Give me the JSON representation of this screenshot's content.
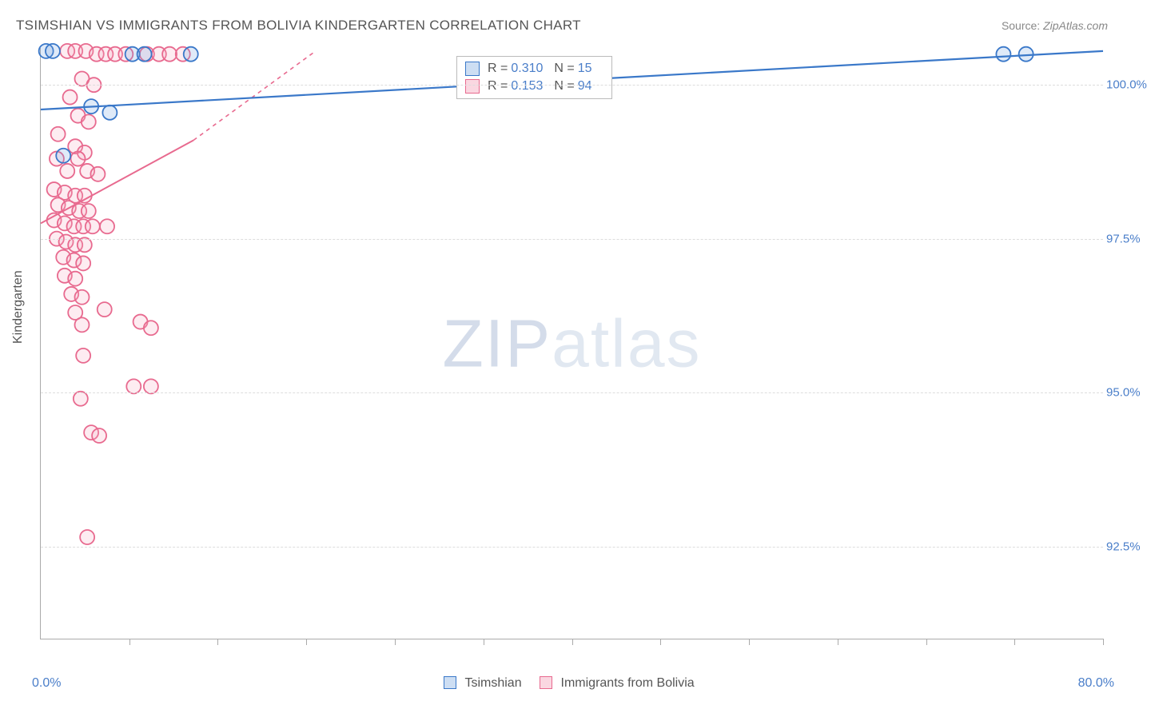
{
  "title": "TSIMSHIAN VS IMMIGRANTS FROM BOLIVIA KINDERGARTEN CORRELATION CHART",
  "source_label": "Source:",
  "source_value": "ZipAtlas.com",
  "ylabel": "Kindergarten",
  "watermark_bold": "ZIP",
  "watermark_light": "atlas",
  "chart": {
    "type": "scatter",
    "plot_bg": "#ffffff",
    "grid_color": "#dddddd",
    "axis_color": "#aaaaaa",
    "tick_label_color": "#4a7ec9",
    "label_color": "#555555",
    "xlim": [
      0,
      80
    ],
    "ylim": [
      91.0,
      100.6
    ],
    "xaxis_left_label": "0.0%",
    "xaxis_right_label": "80.0%",
    "yticks": [
      {
        "v": 100.0,
        "label": "100.0%"
      },
      {
        "v": 97.5,
        "label": "97.5%"
      },
      {
        "v": 95.0,
        "label": "95.0%"
      },
      {
        "v": 92.5,
        "label": "92.5%"
      }
    ],
    "xticks_minor": [
      6.67,
      13.33,
      20,
      26.67,
      33.33,
      40,
      46.67,
      53.33,
      60,
      66.67,
      73.33,
      80
    ],
    "marker_radius": 9,
    "marker_stroke_width": 1.8,
    "marker_fill_opacity": 0.22
  },
  "series": {
    "blue": {
      "name": "Tsimshian",
      "color_stroke": "#3a78c9",
      "color_fill": "#6fa0dd",
      "R": "0.310",
      "N": "15",
      "trend": {
        "x1": 0,
        "y1": 99.6,
        "x2": 80,
        "y2": 100.55,
        "width": 2.2,
        "dash": null
      },
      "points": [
        [
          0.4,
          100.55
        ],
        [
          0.9,
          100.55
        ],
        [
          6.9,
          100.5
        ],
        [
          7.8,
          100.5
        ],
        [
          11.3,
          100.5
        ],
        [
          3.8,
          99.65
        ],
        [
          5.2,
          99.55
        ],
        [
          1.7,
          98.85
        ],
        [
          72.5,
          100.5
        ],
        [
          74.2,
          100.5
        ]
      ]
    },
    "pink": {
      "name": "Immigrants from Bolivia",
      "color_stroke": "#e86a8f",
      "color_fill": "#f4a7bd",
      "R": "0.153",
      "N": "94",
      "trend_solid": {
        "x1": 0,
        "y1": 97.75,
        "x2": 11.5,
        "y2": 99.1,
        "width": 2.0
      },
      "trend_dash": {
        "x1": 11.5,
        "y1": 99.1,
        "x2": 20.7,
        "y2": 100.55,
        "dash": "5,5",
        "width": 1.6
      },
      "points": [
        [
          2.0,
          100.55
        ],
        [
          2.6,
          100.55
        ],
        [
          3.4,
          100.55
        ],
        [
          4.2,
          100.5
        ],
        [
          4.9,
          100.5
        ],
        [
          5.6,
          100.5
        ],
        [
          6.4,
          100.5
        ],
        [
          8.0,
          100.5
        ],
        [
          8.9,
          100.5
        ],
        [
          9.7,
          100.5
        ],
        [
          10.7,
          100.5
        ],
        [
          3.1,
          100.1
        ],
        [
          4.0,
          100.0
        ],
        [
          2.2,
          99.8
        ],
        [
          2.8,
          99.5
        ],
        [
          3.6,
          99.4
        ],
        [
          1.3,
          99.2
        ],
        [
          2.6,
          99.0
        ],
        [
          3.3,
          98.9
        ],
        [
          1.2,
          98.8
        ],
        [
          2.8,
          98.8
        ],
        [
          2.0,
          98.6
        ],
        [
          3.5,
          98.6
        ],
        [
          4.3,
          98.55
        ],
        [
          1.0,
          98.3
        ],
        [
          1.8,
          98.25
        ],
        [
          2.6,
          98.2
        ],
        [
          3.3,
          98.2
        ],
        [
          1.3,
          98.05
        ],
        [
          2.1,
          98.0
        ],
        [
          2.9,
          97.95
        ],
        [
          3.6,
          97.95
        ],
        [
          1.0,
          97.8
        ],
        [
          1.8,
          97.75
        ],
        [
          2.5,
          97.7
        ],
        [
          3.2,
          97.7
        ],
        [
          3.9,
          97.7
        ],
        [
          5.0,
          97.7
        ],
        [
          1.2,
          97.5
        ],
        [
          1.9,
          97.45
        ],
        [
          2.6,
          97.4
        ],
        [
          3.3,
          97.4
        ],
        [
          1.7,
          97.2
        ],
        [
          2.5,
          97.15
        ],
        [
          3.2,
          97.1
        ],
        [
          1.8,
          96.9
        ],
        [
          2.6,
          96.85
        ],
        [
          2.3,
          96.6
        ],
        [
          3.1,
          96.55
        ],
        [
          2.6,
          96.3
        ],
        [
          4.8,
          96.35
        ],
        [
          3.1,
          96.1
        ],
        [
          7.5,
          96.15
        ],
        [
          8.3,
          96.05
        ],
        [
          3.2,
          95.6
        ],
        [
          3.0,
          94.9
        ],
        [
          7.0,
          95.1
        ],
        [
          8.3,
          95.1
        ],
        [
          3.8,
          94.35
        ],
        [
          4.4,
          94.3
        ],
        [
          3.5,
          92.65
        ]
      ]
    }
  },
  "legend": {
    "stat_rows": [
      {
        "sw": "blue",
        "R_label": "R =",
        "N_label": "N ="
      },
      {
        "sw": "pink",
        "R_label": "R =",
        "N_label": "N ="
      }
    ]
  }
}
